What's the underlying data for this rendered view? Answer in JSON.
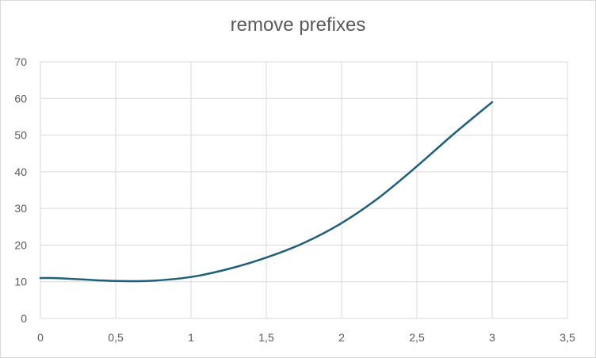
{
  "chart_data": {
    "type": "line",
    "title": "remove prefixes",
    "xlabel": "",
    "ylabel": "",
    "xlim": [
      0,
      3.5
    ],
    "ylim": [
      0,
      70
    ],
    "x_ticks": [
      0,
      0.5,
      1,
      1.5,
      2,
      2.5,
      3,
      3.5
    ],
    "x_tick_labels": [
      "0",
      "0,5",
      "1",
      "1,5",
      "2",
      "2,5",
      "3",
      "3,5"
    ],
    "y_ticks": [
      0,
      10,
      20,
      30,
      40,
      50,
      60,
      70
    ],
    "y_tick_labels": [
      "0",
      "10",
      "20",
      "30",
      "40",
      "50",
      "60",
      "70"
    ],
    "grid": true,
    "legend": "none",
    "series": [
      {
        "color": "#1f5f7a",
        "x": [
          0,
          0.1,
          0.25,
          0.5,
          0.75,
          1.0,
          1.25,
          1.5,
          1.75,
          2.0,
          2.25,
          2.5,
          2.75,
          3.0
        ],
        "y": [
          11.0,
          11.0,
          10.7,
          10.2,
          10.3,
          11.3,
          13.5,
          16.6,
          20.6,
          26.0,
          33.0,
          41.5,
          50.5,
          59.0
        ]
      }
    ]
  }
}
